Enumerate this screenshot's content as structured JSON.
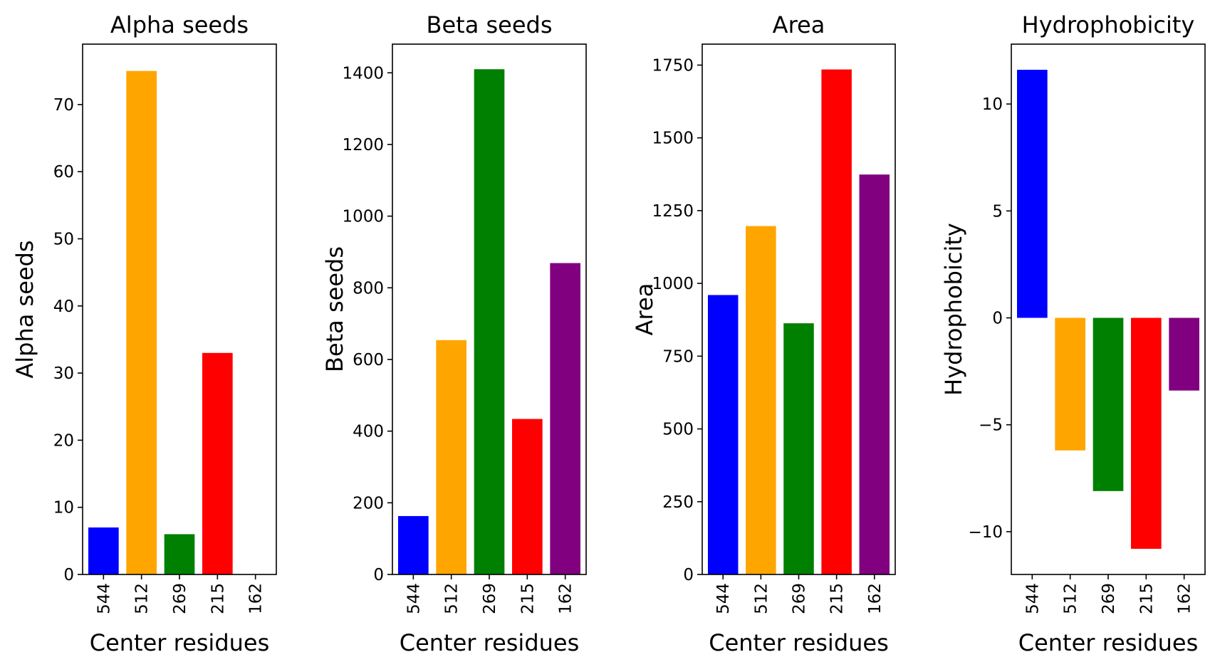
{
  "figure": {
    "background": "#ffffff"
  },
  "chart_data": [
    {
      "type": "bar",
      "title": "Alpha seeds",
      "xlabel": "Center residues",
      "ylabel": "Alpha seeds",
      "categories": [
        "544",
        "512",
        "269",
        "215",
        "162"
      ],
      "values": [
        7,
        75,
        6,
        33,
        0
      ],
      "colors": [
        "#0000ff",
        "#ffa500",
        "#008000",
        "#ff0000",
        "#800080"
      ],
      "ylim": [
        0,
        79
      ],
      "yticks": [
        0,
        10,
        20,
        30,
        40,
        50,
        60,
        70
      ],
      "ytick_labels": [
        "0",
        "10",
        "20",
        "30",
        "40",
        "50",
        "60",
        "70"
      ],
      "grid": false,
      "legend": "none"
    },
    {
      "type": "bar",
      "title": "Beta seeds",
      "xlabel": "Center residues",
      "ylabel": "Beta seeds",
      "categories": [
        "544",
        "512",
        "269",
        "215",
        "162"
      ],
      "values": [
        163,
        654,
        1410,
        434,
        869
      ],
      "colors": [
        "#0000ff",
        "#ffa500",
        "#008000",
        "#ff0000",
        "#800080"
      ],
      "ylim": [
        0,
        1480
      ],
      "yticks": [
        0,
        200,
        400,
        600,
        800,
        1000,
        1200,
        1400
      ],
      "ytick_labels": [
        "0",
        "200",
        "400",
        "600",
        "800",
        "1000",
        "1200",
        "1400"
      ],
      "grid": false,
      "legend": "none"
    },
    {
      "type": "bar",
      "title": "Area",
      "xlabel": "Center residues",
      "ylabel": "Area",
      "categories": [
        "544",
        "512",
        "269",
        "215",
        "162"
      ],
      "values": [
        960,
        1197,
        863,
        1735,
        1374
      ],
      "colors": [
        "#0000ff",
        "#ffa500",
        "#008000",
        "#ff0000",
        "#800080"
      ],
      "ylim": [
        0,
        1822
      ],
      "yticks": [
        0,
        250,
        500,
        750,
        1000,
        1250,
        1500,
        1750
      ],
      "ytick_labels": [
        "0",
        "250",
        "500",
        "750",
        "1000",
        "1250",
        "1500",
        "1750"
      ],
      "grid": false,
      "legend": "none"
    },
    {
      "type": "bar",
      "title": "Hydrophobicity",
      "xlabel": "Center residues",
      "ylabel": "Hydrophobicity",
      "categories": [
        "544",
        "512",
        "269",
        "215",
        "162"
      ],
      "values": [
        11.6,
        -6.2,
        -8.1,
        -10.8,
        -3.4
      ],
      "colors": [
        "#0000ff",
        "#ffa500",
        "#008000",
        "#ff0000",
        "#800080"
      ],
      "ylim": [
        -12,
        12.8
      ],
      "yticks": [
        -10,
        -5,
        0,
        5,
        10
      ],
      "ytick_labels": [
        "−10",
        "−5",
        "0",
        "5",
        "10"
      ],
      "grid": false,
      "legend": "none"
    }
  ]
}
